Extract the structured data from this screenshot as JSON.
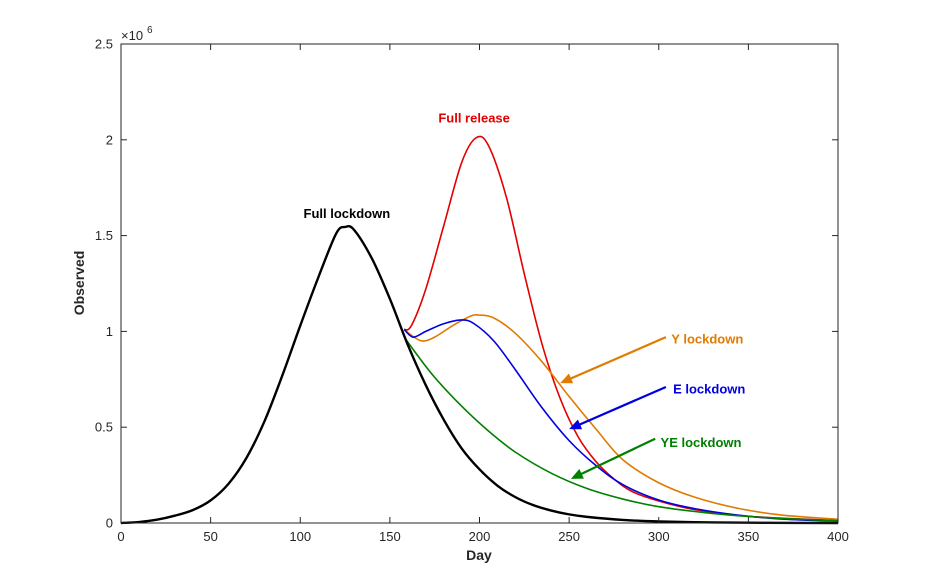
{
  "chart_data": {
    "type": "line",
    "xlabel": "Day",
    "ylabel": "Observed",
    "exponent_label": "×10",
    "exponent_power": "6",
    "xlim": [
      0,
      400
    ],
    "ylim": [
      0,
      2.5
    ],
    "x_ticks": [
      "0",
      "50",
      "100",
      "150",
      "200",
      "250",
      "300",
      "350",
      "400"
    ],
    "y_ticks": [
      "0",
      "0.5",
      "1",
      "1.5",
      "2",
      "2.5"
    ],
    "grid": false,
    "legend": "none",
    "series": [
      {
        "name": "Full lockdown",
        "color": "#000000",
        "points": [
          [
            0,
            0.0
          ],
          [
            10,
            0.005
          ],
          [
            20,
            0.017
          ],
          [
            30,
            0.038
          ],
          [
            40,
            0.067
          ],
          [
            50,
            0.118
          ],
          [
            60,
            0.205
          ],
          [
            70,
            0.34
          ],
          [
            80,
            0.53
          ],
          [
            90,
            0.77
          ],
          [
            100,
            1.03
          ],
          [
            110,
            1.28
          ],
          [
            120,
            1.51
          ],
          [
            125,
            1.545
          ],
          [
            130,
            1.53
          ],
          [
            140,
            1.38
          ],
          [
            150,
            1.17
          ],
          [
            160,
            0.93
          ],
          [
            170,
            0.72
          ],
          [
            180,
            0.54
          ],
          [
            190,
            0.39
          ],
          [
            200,
            0.28
          ],
          [
            210,
            0.195
          ],
          [
            220,
            0.135
          ],
          [
            230,
            0.093
          ],
          [
            240,
            0.065
          ],
          [
            250,
            0.045
          ],
          [
            260,
            0.032
          ],
          [
            280,
            0.016
          ],
          [
            300,
            0.008
          ],
          [
            330,
            0.003
          ],
          [
            360,
            0.001
          ],
          [
            400,
            0.0
          ]
        ]
      },
      {
        "name": "Full release",
        "color": "#e30000",
        "points": [
          [
            158,
            1.01
          ],
          [
            162,
            1.03
          ],
          [
            170,
            1.22
          ],
          [
            180,
            1.55
          ],
          [
            190,
            1.88
          ],
          [
            198,
            2.01
          ],
          [
            205,
            1.97
          ],
          [
            215,
            1.7
          ],
          [
            225,
            1.3
          ],
          [
            235,
            0.93
          ],
          [
            245,
            0.65
          ],
          [
            255,
            0.45
          ],
          [
            265,
            0.32
          ],
          [
            275,
            0.23
          ],
          [
            285,
            0.165
          ],
          [
            300,
            0.115
          ],
          [
            320,
            0.07
          ],
          [
            350,
            0.035
          ],
          [
            400,
            0.013
          ]
        ]
      },
      {
        "name": "Y lockdown",
        "color": "#e07b00",
        "points": [
          [
            158,
            1.01
          ],
          [
            162,
            0.98
          ],
          [
            168,
            0.95
          ],
          [
            175,
            0.97
          ],
          [
            185,
            1.03
          ],
          [
            195,
            1.08
          ],
          [
            200,
            1.085
          ],
          [
            208,
            1.07
          ],
          [
            220,
            0.99
          ],
          [
            235,
            0.84
          ],
          [
            250,
            0.66
          ],
          [
            265,
            0.49
          ],
          [
            280,
            0.33
          ],
          [
            300,
            0.21
          ],
          [
            320,
            0.135
          ],
          [
            345,
            0.075
          ],
          [
            370,
            0.04
          ],
          [
            400,
            0.02
          ]
        ]
      },
      {
        "name": "E lockdown",
        "color": "#0000e0",
        "points": [
          [
            158,
            1.01
          ],
          [
            163,
            0.97
          ],
          [
            170,
            1.0
          ],
          [
            180,
            1.04
          ],
          [
            190,
            1.06
          ],
          [
            197,
            1.04
          ],
          [
            208,
            0.95
          ],
          [
            220,
            0.8
          ],
          [
            235,
            0.6
          ],
          [
            250,
            0.43
          ],
          [
            265,
            0.3
          ],
          [
            280,
            0.2
          ],
          [
            300,
            0.12
          ],
          [
            320,
            0.075
          ],
          [
            345,
            0.04
          ],
          [
            370,
            0.02
          ],
          [
            400,
            0.01
          ]
        ]
      },
      {
        "name": "YE lockdown",
        "color": "#008000",
        "points": [
          [
            158,
            0.97
          ],
          [
            165,
            0.88
          ],
          [
            175,
            0.76
          ],
          [
            190,
            0.61
          ],
          [
            205,
            0.48
          ],
          [
            220,
            0.37
          ],
          [
            240,
            0.26
          ],
          [
            260,
            0.18
          ],
          [
            280,
            0.125
          ],
          [
            300,
            0.085
          ],
          [
            330,
            0.05
          ],
          [
            360,
            0.028
          ],
          [
            400,
            0.012
          ]
        ]
      }
    ],
    "annotations": [
      {
        "text": "Full lockdown",
        "color": "#000000",
        "x": 126,
        "y": 1.615
      },
      {
        "text": "Full release",
        "color": "#e30000",
        "x": 197,
        "y": 2.115
      },
      {
        "text": "Y lockdown",
        "color": "#e07b00",
        "x": 307,
        "y": 0.96,
        "arrow_from": [
          304,
          0.97
        ],
        "arrow_to": [
          245,
          0.73
        ]
      },
      {
        "text": "E lockdown",
        "color": "#0000e0",
        "x": 308,
        "y": 0.7,
        "arrow_from": [
          304,
          0.71
        ],
        "arrow_to": [
          250,
          0.49
        ]
      },
      {
        "text": "YE lockdown",
        "color": "#008000",
        "x": 301,
        "y": 0.42,
        "arrow_from": [
          298,
          0.44
        ],
        "arrow_to": [
          251,
          0.23
        ]
      }
    ]
  }
}
